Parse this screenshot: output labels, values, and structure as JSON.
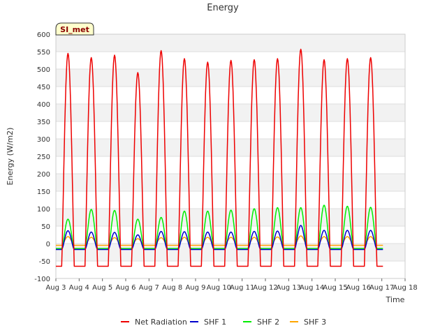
{
  "chart_data": {
    "type": "line",
    "title": "Energy",
    "xlabel": "Time",
    "ylabel": "Energy (W/m2)",
    "site_label": "SI_met",
    "xlim": [
      3,
      18
    ],
    "ylim": [
      -100,
      600
    ],
    "yticks": [
      -100,
      -50,
      0,
      50,
      100,
      150,
      200,
      250,
      300,
      350,
      400,
      450,
      500,
      550,
      600
    ],
    "xtick_values": [
      3,
      4,
      5,
      6,
      7,
      8,
      9,
      10,
      11,
      12,
      13,
      14,
      15,
      16,
      17,
      18
    ],
    "xtick_labels": [
      "Aug 3",
      "Aug 4",
      "Aug 5",
      "Aug 6",
      "Aug 7",
      "Aug 8",
      "Aug 9",
      "Aug 10",
      "Aug 11",
      "Aug 12",
      "Aug 13",
      "Aug 14",
      "Aug 15",
      "Aug 16",
      "Aug 17",
      "Aug 18"
    ],
    "grid": true,
    "legend": "bottom-center",
    "series": [
      {
        "name": "Net Radiation",
        "color": "#ee0000",
        "day_start": 3,
        "day_peaks": [
          545,
          533,
          540,
          490,
          553,
          530,
          520,
          525,
          527,
          530,
          557,
          527,
          530,
          533
        ],
        "night": -65
      },
      {
        "name": "SHF 1",
        "color": "#0000cc",
        "day_start": 3,
        "day_peaks": [
          37,
          33,
          32,
          25,
          35,
          34,
          33,
          33,
          35,
          36,
          52,
          38,
          38,
          38
        ],
        "night": -17
      },
      {
        "name": "SHF 2",
        "color": "#00ee00",
        "day_start": 3,
        "day_peaks": [
          70,
          98,
          95,
          70,
          75,
          93,
          93,
          96,
          100,
          103,
          103,
          110,
          107,
          104
        ],
        "night": -14
      },
      {
        "name": "SHF 3",
        "color": "#ffa500",
        "day_start": 3,
        "day_peaks": [
          20,
          18,
          17,
          14,
          17,
          18,
          18,
          18,
          18,
          19,
          22,
          20,
          20,
          20
        ],
        "night": -5
      }
    ]
  }
}
